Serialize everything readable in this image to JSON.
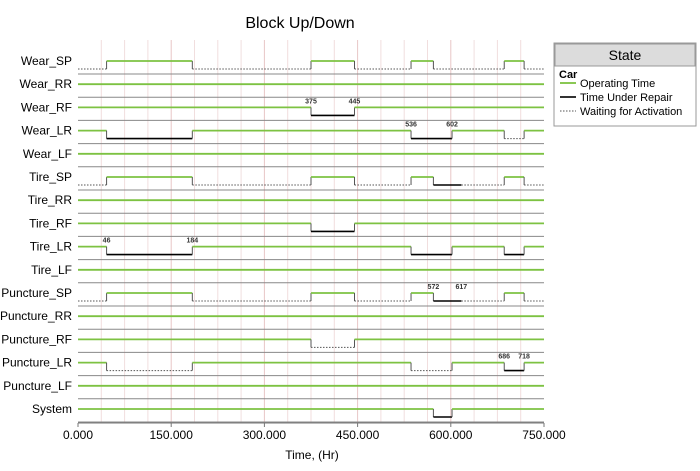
{
  "chart_data": {
    "type": "timeline",
    "title": "Block Up/Down",
    "xlabel": "Time, (Hr)",
    "xlim": [
      0,
      750
    ],
    "x_ticks": [
      0,
      150,
      300,
      450,
      600,
      750
    ],
    "x_tick_labels": [
      "0.000",
      "150.000",
      "300.000",
      "450.000",
      "600.000",
      "750.000"
    ],
    "colors": {
      "operating": "#7dc242",
      "repair": "#000000",
      "waiting": "#555555",
      "row_line": "#888888"
    },
    "legend": {
      "title": "State",
      "group": "Car",
      "placement": "right",
      "entries": [
        {
          "key": "operating",
          "label": "Operating Time"
        },
        {
          "key": "repair",
          "label": "Time Under Repair"
        },
        {
          "key": "waiting",
          "label": "Waiting for Activation"
        }
      ]
    },
    "rows": [
      {
        "name": "Wear_SP",
        "segments": [
          {
            "start": 0,
            "end": 46,
            "state": "waiting"
          },
          {
            "start": 46,
            "end": 184,
            "state": "operating"
          },
          {
            "start": 184,
            "end": 375,
            "state": "waiting"
          },
          {
            "start": 375,
            "end": 445,
            "state": "operating"
          },
          {
            "start": 445,
            "end": 536,
            "state": "waiting"
          },
          {
            "start": 536,
            "end": 572,
            "state": "operating"
          },
          {
            "start": 572,
            "end": 686,
            "state": "waiting"
          },
          {
            "start": 686,
            "end": 718,
            "state": "operating"
          },
          {
            "start": 718,
            "end": 750,
            "state": "waiting"
          }
        ]
      },
      {
        "name": "Wear_RR",
        "segments": [
          {
            "start": 0,
            "end": 750,
            "state": "operating"
          }
        ]
      },
      {
        "name": "Wear_RF",
        "segments": [
          {
            "start": 0,
            "end": 375,
            "state": "operating"
          },
          {
            "start": 375,
            "end": 445,
            "state": "repair"
          },
          {
            "start": 445,
            "end": 750,
            "state": "operating"
          }
        ]
      },
      {
        "name": "Wear_LR",
        "segments": [
          {
            "start": 0,
            "end": 46,
            "state": "operating"
          },
          {
            "start": 46,
            "end": 184,
            "state": "repair"
          },
          {
            "start": 184,
            "end": 536,
            "state": "operating"
          },
          {
            "start": 536,
            "end": 602,
            "state": "repair"
          },
          {
            "start": 602,
            "end": 686,
            "state": "operating"
          },
          {
            "start": 686,
            "end": 718,
            "state": "waiting"
          },
          {
            "start": 718,
            "end": 750,
            "state": "operating"
          }
        ]
      },
      {
        "name": "Wear_LF",
        "segments": [
          {
            "start": 0,
            "end": 750,
            "state": "operating"
          }
        ]
      },
      {
        "name": "Tire_SP",
        "segments": [
          {
            "start": 0,
            "end": 46,
            "state": "waiting"
          },
          {
            "start": 46,
            "end": 184,
            "state": "operating"
          },
          {
            "start": 184,
            "end": 375,
            "state": "waiting"
          },
          {
            "start": 375,
            "end": 445,
            "state": "operating"
          },
          {
            "start": 445,
            "end": 536,
            "state": "waiting"
          },
          {
            "start": 536,
            "end": 572,
            "state": "operating"
          },
          {
            "start": 572,
            "end": 617,
            "state": "repair"
          },
          {
            "start": 617,
            "end": 686,
            "state": "waiting"
          },
          {
            "start": 686,
            "end": 718,
            "state": "operating"
          },
          {
            "start": 718,
            "end": 750,
            "state": "waiting"
          }
        ]
      },
      {
        "name": "Tire_RR",
        "segments": [
          {
            "start": 0,
            "end": 750,
            "state": "operating"
          }
        ]
      },
      {
        "name": "Tire_RF",
        "segments": [
          {
            "start": 0,
            "end": 375,
            "state": "operating"
          },
          {
            "start": 375,
            "end": 445,
            "state": "repair"
          },
          {
            "start": 445,
            "end": 750,
            "state": "operating"
          }
        ]
      },
      {
        "name": "Tire_LR",
        "segments": [
          {
            "start": 0,
            "end": 46,
            "state": "operating"
          },
          {
            "start": 46,
            "end": 184,
            "state": "repair"
          },
          {
            "start": 184,
            "end": 536,
            "state": "operating"
          },
          {
            "start": 536,
            "end": 602,
            "state": "repair"
          },
          {
            "start": 602,
            "end": 686,
            "state": "operating"
          },
          {
            "start": 686,
            "end": 718,
            "state": "repair"
          },
          {
            "start": 718,
            "end": 750,
            "state": "operating"
          }
        ]
      },
      {
        "name": "Tire_LF",
        "segments": [
          {
            "start": 0,
            "end": 750,
            "state": "operating"
          }
        ]
      },
      {
        "name": "Puncture_SP",
        "segments": [
          {
            "start": 0,
            "end": 46,
            "state": "waiting"
          },
          {
            "start": 46,
            "end": 184,
            "state": "operating"
          },
          {
            "start": 184,
            "end": 375,
            "state": "waiting"
          },
          {
            "start": 375,
            "end": 445,
            "state": "operating"
          },
          {
            "start": 445,
            "end": 536,
            "state": "waiting"
          },
          {
            "start": 536,
            "end": 572,
            "state": "operating"
          },
          {
            "start": 572,
            "end": 617,
            "state": "repair"
          },
          {
            "start": 617,
            "end": 686,
            "state": "waiting"
          },
          {
            "start": 686,
            "end": 718,
            "state": "operating"
          },
          {
            "start": 718,
            "end": 750,
            "state": "waiting"
          }
        ]
      },
      {
        "name": "Puncture_RR",
        "segments": [
          {
            "start": 0,
            "end": 750,
            "state": "operating"
          }
        ]
      },
      {
        "name": "Puncture_RF",
        "segments": [
          {
            "start": 0,
            "end": 375,
            "state": "operating"
          },
          {
            "start": 375,
            "end": 445,
            "state": "waiting"
          },
          {
            "start": 445,
            "end": 750,
            "state": "operating"
          }
        ]
      },
      {
        "name": "Puncture_LR",
        "segments": [
          {
            "start": 0,
            "end": 46,
            "state": "operating"
          },
          {
            "start": 46,
            "end": 184,
            "state": "waiting"
          },
          {
            "start": 184,
            "end": 536,
            "state": "operating"
          },
          {
            "start": 536,
            "end": 602,
            "state": "waiting"
          },
          {
            "start": 602,
            "end": 686,
            "state": "operating"
          },
          {
            "start": 686,
            "end": 718,
            "state": "repair"
          },
          {
            "start": 718,
            "end": 750,
            "state": "operating"
          }
        ]
      },
      {
        "name": "Puncture_LF",
        "segments": [
          {
            "start": 0,
            "end": 750,
            "state": "operating"
          }
        ]
      },
      {
        "name": "System",
        "segments": [
          {
            "start": 0,
            "end": 572,
            "state": "operating"
          },
          {
            "start": 572,
            "end": 602,
            "state": "repair"
          },
          {
            "start": 602,
            "end": 750,
            "state": "operating"
          }
        ]
      }
    ],
    "annotations": [
      {
        "row": "Wear_RF",
        "x": 375,
        "label": "375"
      },
      {
        "row": "Wear_RF",
        "x": 445,
        "label": "445"
      },
      {
        "row": "Wear_LR",
        "x": 536,
        "label": "536"
      },
      {
        "row": "Wear_LR",
        "x": 602,
        "label": "602"
      },
      {
        "row": "Tire_LR",
        "x": 46,
        "label": "46"
      },
      {
        "row": "Tire_LR",
        "x": 184,
        "label": "184"
      },
      {
        "row": "Puncture_SP",
        "x": 572,
        "label": "572"
      },
      {
        "row": "Puncture_SP",
        "x": 617,
        "label": "617"
      },
      {
        "row": "Puncture_LR",
        "x": 686,
        "label": "686"
      },
      {
        "row": "Puncture_LR",
        "x": 718,
        "label": "718"
      }
    ]
  }
}
